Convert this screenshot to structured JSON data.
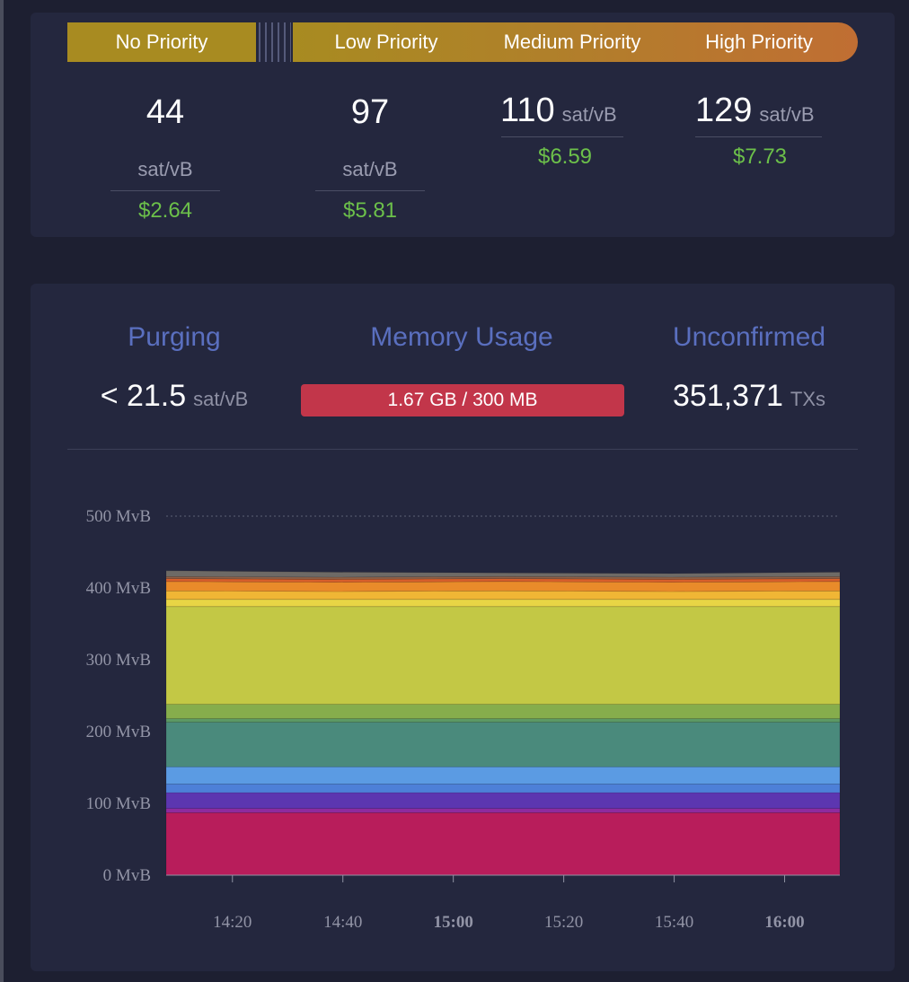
{
  "fee_priorities": {
    "no_priority": {
      "label": "No Priority",
      "rate": "44",
      "unit": "sat/vB",
      "usd": "$2.64"
    },
    "low_priority": {
      "label": "Low Priority",
      "rate": "97",
      "unit": "sat/vB",
      "usd": "$5.81"
    },
    "medium_priority": {
      "label": "Medium Priority",
      "rate": "110",
      "unit": "sat/vB",
      "usd": "$6.59"
    },
    "high_priority": {
      "label": "High Priority",
      "rate": "129",
      "unit": "sat/vB",
      "usd": "$7.73"
    }
  },
  "mempool_stats": {
    "purging": {
      "title": "Purging",
      "value": "< 21.5",
      "unit": "sat/vB"
    },
    "memory_usage": {
      "title": "Memory Usage",
      "value": "1.67 GB / 300 MB",
      "fraction": 1.0
    },
    "unconfirmed": {
      "title": "Unconfirmed",
      "value": "351,371",
      "unit": "TXs"
    }
  },
  "chart_data": {
    "type": "area",
    "stacked": true,
    "xlabel": "",
    "ylabel": "",
    "x_ticks": [
      "14:20",
      "14:40",
      "15:00",
      "15:20",
      "15:40",
      "16:00"
    ],
    "x_ticks_bold": [
      "15:00",
      "16:00"
    ],
    "x_range_minutes": [
      0,
      122
    ],
    "x_tick_minutes": [
      12,
      32,
      52,
      72,
      92,
      112
    ],
    "y_ticks": [
      "0 MvB",
      "100 MvB",
      "200 MvB",
      "300 MvB",
      "400 MvB",
      "500 MvB"
    ],
    "ylim": [
      0,
      500
    ],
    "grid": "dotted line at 500 MvB only",
    "series": [
      {
        "color": "#b81d5b",
        "values": [
          87,
          87,
          87,
          87,
          87
        ]
      },
      {
        "color": "#8e2b9e",
        "values": [
          6,
          6,
          6,
          6,
          6
        ]
      },
      {
        "color": "#5c36b0",
        "values": [
          22,
          22,
          22,
          22,
          22
        ]
      },
      {
        "color": "#4d80d8",
        "values": [
          12,
          12,
          12,
          12,
          12
        ]
      },
      {
        "color": "#5b9be3",
        "values": [
          24,
          24,
          24,
          24,
          24
        ]
      },
      {
        "color": "#4a8a7c",
        "values": [
          62,
          62,
          62,
          62,
          62
        ]
      },
      {
        "color": "#5c9964",
        "values": [
          5,
          5,
          5,
          5,
          5
        ]
      },
      {
        "color": "#86ad4c",
        "values": [
          20,
          20,
          20,
          20,
          20
        ]
      },
      {
        "color": "#c3c845",
        "values": [
          136,
          136,
          136,
          136,
          136
        ]
      },
      {
        "color": "#e8d545",
        "values": [
          10,
          10,
          10,
          10,
          10
        ]
      },
      {
        "color": "#f0b635",
        "values": [
          12,
          11,
          12,
          11,
          12
        ]
      },
      {
        "color": "#e98b2a",
        "values": [
          13,
          13,
          13,
          13,
          13
        ]
      },
      {
        "color": "#d85f2b",
        "values": [
          4,
          4,
          4,
          4,
          4
        ]
      },
      {
        "color": "#8e6047",
        "values": [
          3,
          3,
          3,
          3,
          3
        ]
      },
      {
        "color": "#6e6a66",
        "values": [
          8,
          7,
          5,
          5,
          6
        ]
      }
    ]
  }
}
